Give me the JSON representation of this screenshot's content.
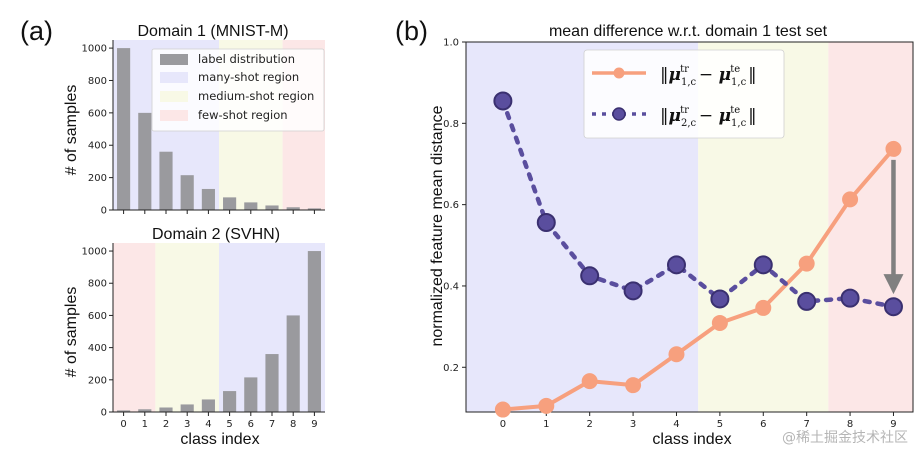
{
  "panel_labels": [
    "(a)",
    "(b)"
  ],
  "watermark": "@稀土掘金技术社区",
  "colors": {
    "bar": "#9a9a9e",
    "many_shot": "#e7e7fb",
    "medium_shot": "#f8f9e6",
    "few_shot": "#fce7e7",
    "series1": "#f7a07e",
    "series2": "#5a4e9e",
    "arrow": "#808080"
  },
  "legend_a": {
    "label_distribution": "label distribution",
    "many_shot": "many-shot region",
    "medium_shot": "medium-shot region",
    "few_shot": "few-shot region"
  },
  "chart_data": [
    {
      "type": "bar",
      "title": "Domain 1 (MNIST-M)",
      "xlabel": "",
      "ylabel": "# of samples",
      "categories": [
        "0",
        "1",
        "2",
        "3",
        "4",
        "5",
        "6",
        "7",
        "8",
        "9"
      ],
      "values": [
        1000,
        600,
        360,
        215,
        130,
        78,
        47,
        28,
        17,
        10
      ],
      "ylim": [
        0,
        1050
      ],
      "yticks": [
        0,
        200,
        400,
        600,
        800,
        1000
      ],
      "regions": [
        {
          "name": "many-shot region",
          "from": -0.5,
          "to": 4.5
        },
        {
          "name": "medium-shot region",
          "from": 4.5,
          "to": 7.5
        },
        {
          "name": "few-shot region",
          "from": 7.5,
          "to": 9.5
        }
      ],
      "show_xticklabels": false
    },
    {
      "type": "bar",
      "title": "Domain 2 (SVHN)",
      "xlabel": "class index",
      "ylabel": "# of samples",
      "categories": [
        "0",
        "1",
        "2",
        "3",
        "4",
        "5",
        "6",
        "7",
        "8",
        "9"
      ],
      "values": [
        10,
        17,
        28,
        47,
        78,
        130,
        215,
        360,
        600,
        1000
      ],
      "ylim": [
        0,
        1050
      ],
      "yticks": [
        0,
        200,
        400,
        600,
        800,
        1000
      ],
      "regions": [
        {
          "name": "few-shot region",
          "from": -0.5,
          "to": 1.5
        },
        {
          "name": "medium-shot region",
          "from": 1.5,
          "to": 4.5
        },
        {
          "name": "many-shot region",
          "from": 4.5,
          "to": 9.5
        }
      ],
      "show_xticklabels": true
    },
    {
      "type": "line",
      "title": "mean difference w.r.t. domain 1 test set",
      "xlabel": "class index",
      "ylabel": "normalized feature mean distance",
      "x": [
        0,
        1,
        2,
        3,
        4,
        5,
        6,
        7,
        8,
        9
      ],
      "xlim": [
        -0.85,
        9.45
      ],
      "ylim": [
        0.09,
        1.0
      ],
      "yticks": [
        0.2,
        0.4,
        0.6,
        0.8,
        1.0
      ],
      "regions": [
        {
          "name": "many-shot region",
          "from": -0.85,
          "to": 4.5
        },
        {
          "name": "medium-shot region",
          "from": 4.5,
          "to": 7.5
        },
        {
          "name": "few-shot region",
          "from": 7.5,
          "to": 9.45
        }
      ],
      "series": [
        {
          "name": "‖μ₁,c^tr − μ₁,c^te‖",
          "style": "solid",
          "values": [
            0.096,
            0.105,
            0.166,
            0.156,
            0.232,
            0.309,
            0.346,
            0.455,
            0.613,
            0.737
          ]
        },
        {
          "name": "‖μ₂,c^tr − μ₁,c^te‖",
          "style": "dotted",
          "values": [
            0.855,
            0.556,
            0.425,
            0.388,
            0.452,
            0.368,
            0.452,
            0.362,
            0.37,
            0.349
          ]
        }
      ],
      "annotations": [
        {
          "type": "arrow",
          "x": 9,
          "from": 0.71,
          "to": 0.38
        }
      ]
    }
  ]
}
